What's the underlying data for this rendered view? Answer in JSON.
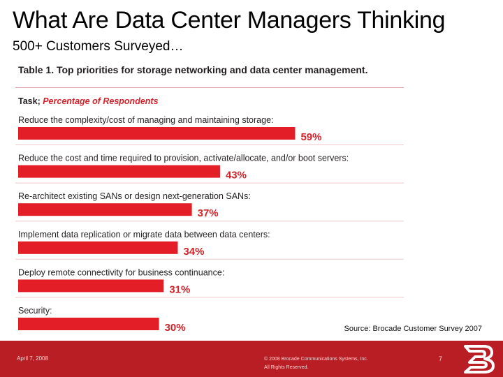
{
  "slide": {
    "title": "What Are Data Center Managers Thinking",
    "subtitle": "500+ Customers Surveyed…"
  },
  "chart_data": {
    "type": "bar",
    "orientation": "horizontal",
    "title": "Table 1. Top priorities for storage networking and data center management.",
    "header_task": "Task;",
    "header_metric": "Percentage of Respondents",
    "categories": [
      "Reduce the complexity/cost of managing and maintaining storage:",
      "Reduce the cost and time required to provision, activate/allocate, and/or boot servers:",
      "Re-architect existing SANs or design next-generation SANs:",
      "Implement data replication or migrate data between data centers:",
      "Deploy remote connectivity for business continuance:",
      "Security:"
    ],
    "values": [
      59,
      43,
      37,
      34,
      31,
      30
    ],
    "value_labels": [
      "59%",
      "43%",
      "37%",
      "34%",
      "31%",
      "30%"
    ],
    "unit": "%",
    "bar_color": "#e31e26",
    "label_color": "#d2232a"
  },
  "source": "Source: Brocade Customer Survey 2007",
  "footer": {
    "date": "April 7, 2008",
    "copyright_line1": "© 2008 Brocade Communications Systems, Inc.",
    "copyright_line2": "All Rights Reserved.",
    "page_number": "7",
    "background": "#b81e23"
  },
  "logo_icon": "brocade-b-logo-icon"
}
